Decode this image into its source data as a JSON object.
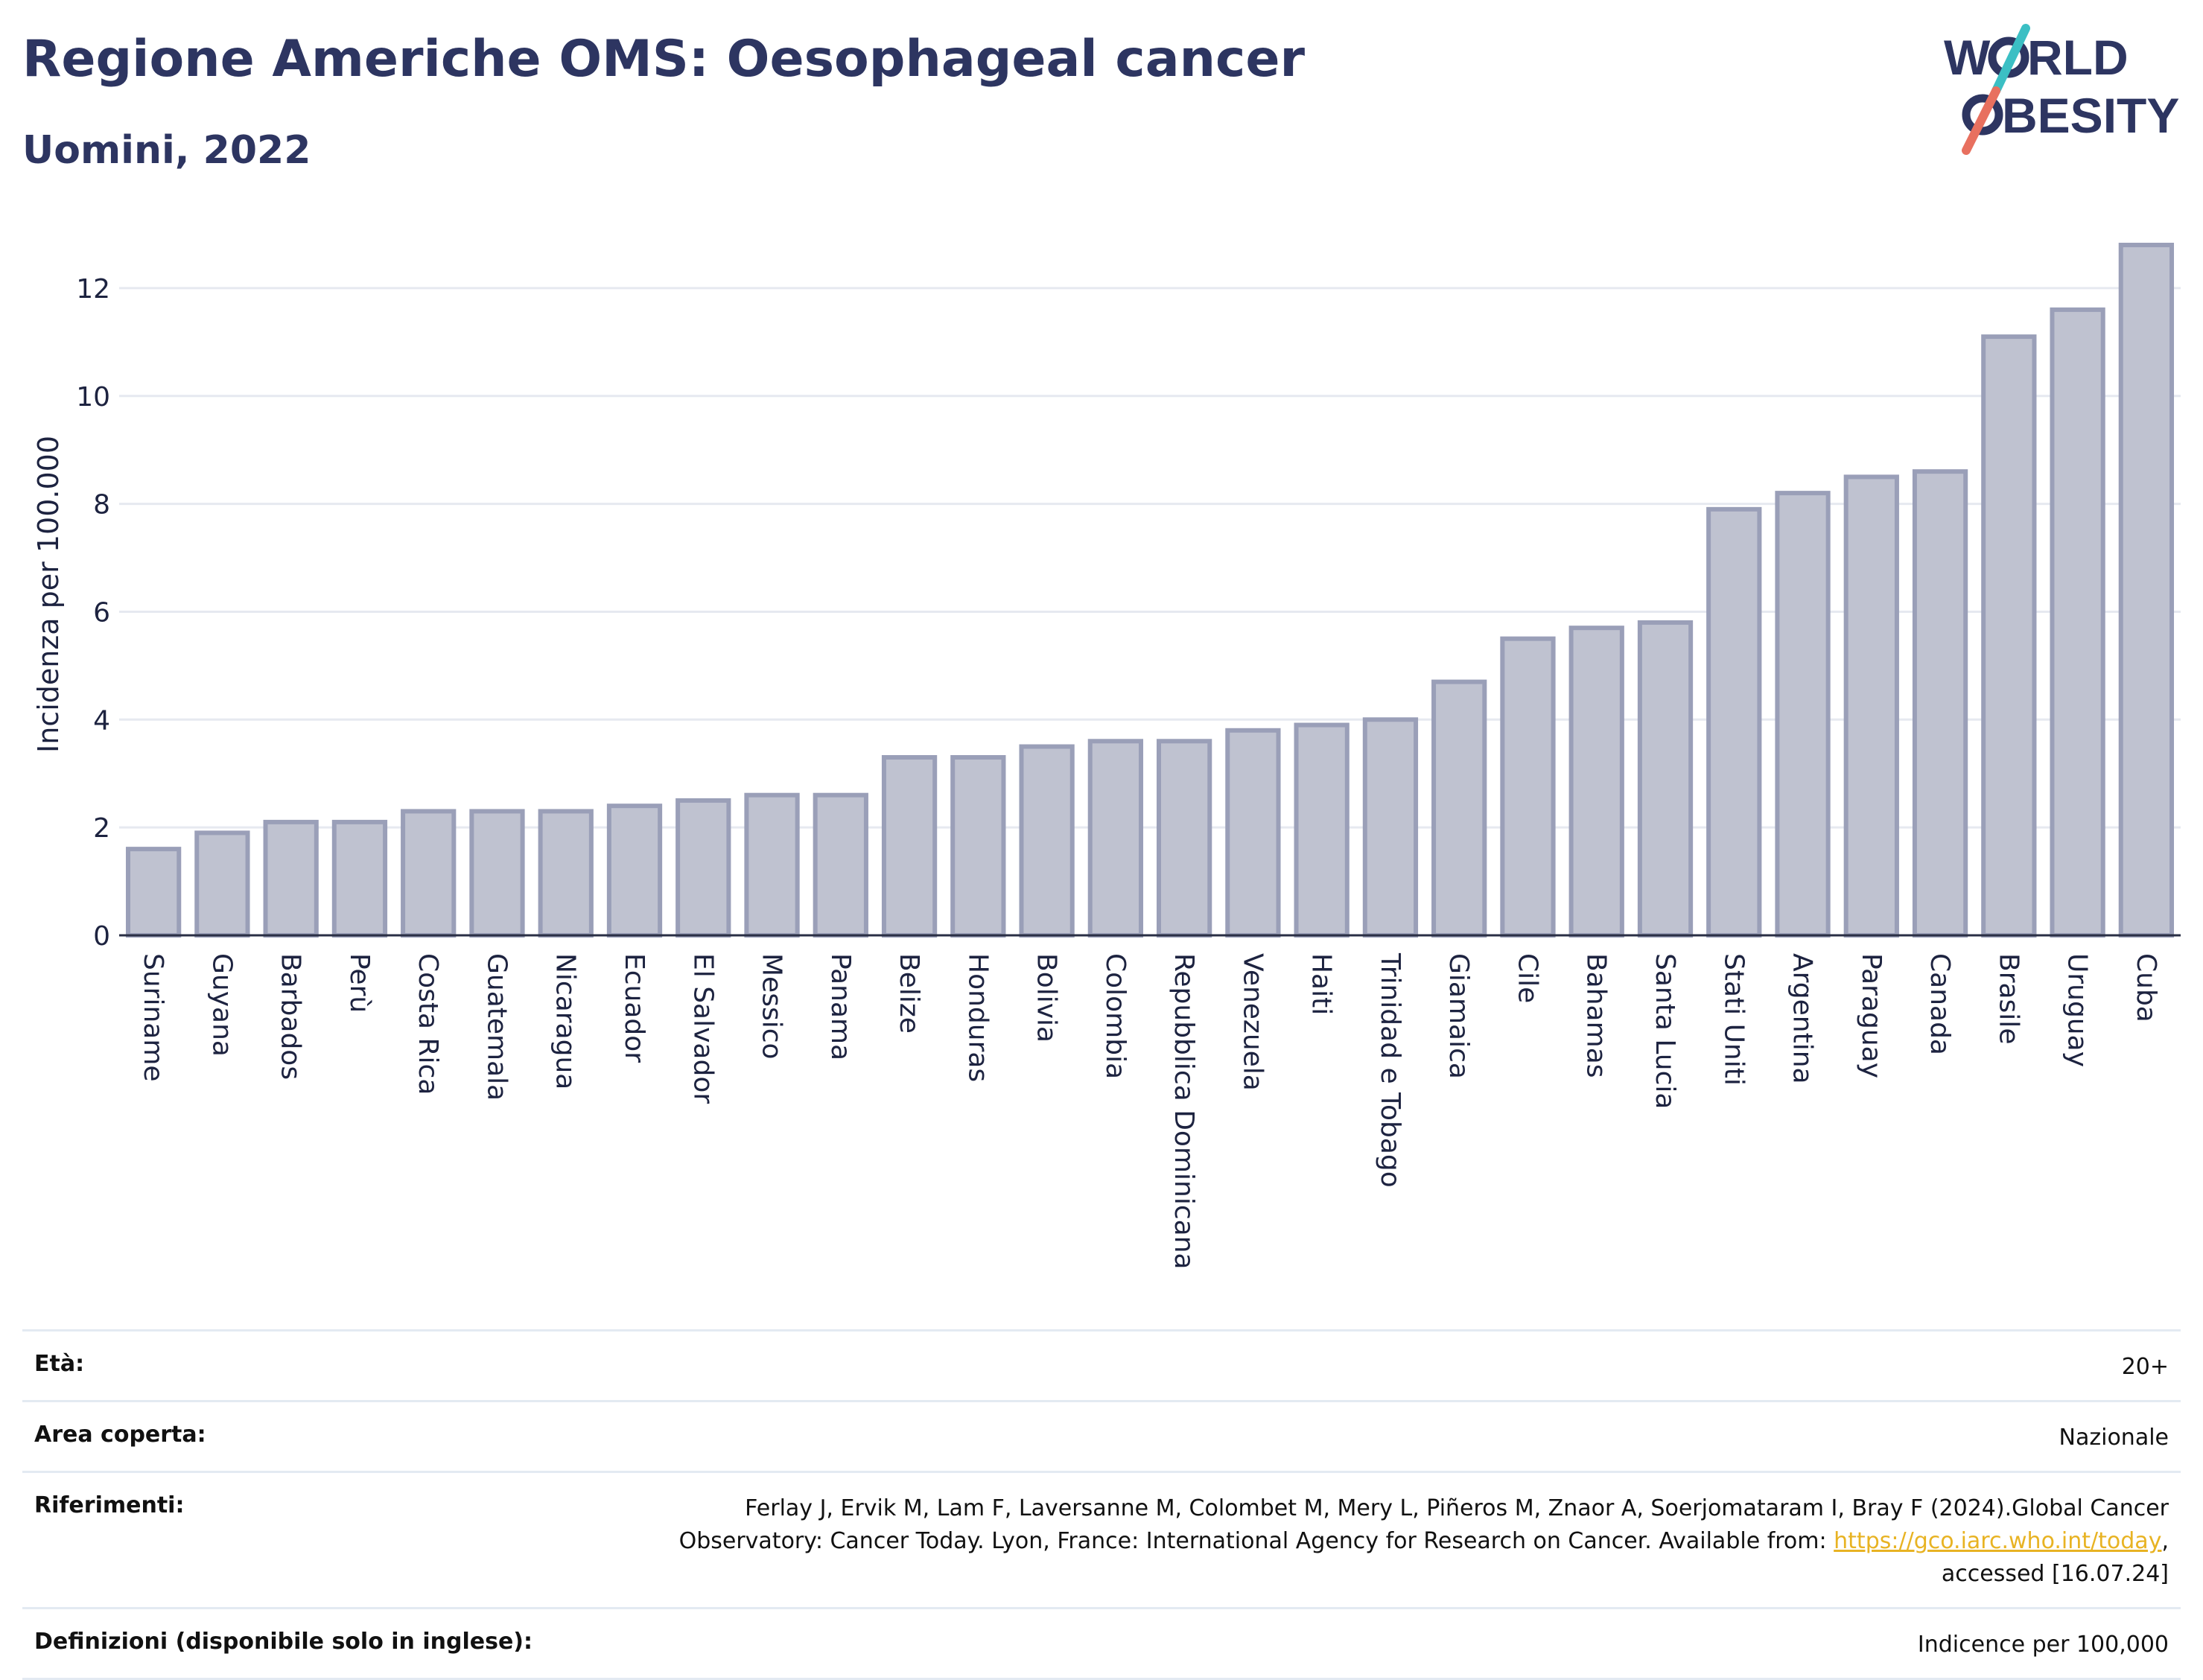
{
  "header": {
    "title": "Regione Americhe OMS: Oesophageal cancer",
    "subtitle": "Uomini, 2022",
    "logo_text": [
      "W",
      "RLD",
      "BESITY"
    ]
  },
  "colors": {
    "title": "#2d3561",
    "bar_fill": "#bfc2d0",
    "bar_stroke": "#9a9fb8",
    "grid": "#e6e9f0",
    "logo_navy": "#2d3561",
    "logo_teal": "#3bbfc4",
    "logo_coral": "#e8705f",
    "link": "#e8b323"
  },
  "chart_data": {
    "type": "bar",
    "categories": [
      "Suriname",
      "Guyana",
      "Barbados",
      "Perù",
      "Costa Rica",
      "Guatemala",
      "Nicaragua",
      "Ecuador",
      "El Salvador",
      "Messico",
      "Panama",
      "Belize",
      "Honduras",
      "Bolivia",
      "Colombia",
      "Repubblica Dominicana",
      "Venezuela",
      "Haiti",
      "Trinidad e Tobago",
      "Giamaica",
      "Cile",
      "Bahamas",
      "Santa Lucia",
      "Stati Uniti",
      "Argentina",
      "Paraguay",
      "Canada",
      "Brasile",
      "Uruguay",
      "Cuba"
    ],
    "values": [
      1.6,
      1.9,
      2.1,
      2.1,
      2.3,
      2.3,
      2.3,
      2.4,
      2.5,
      2.6,
      2.6,
      3.3,
      3.3,
      3.5,
      3.6,
      3.6,
      3.8,
      3.9,
      4.0,
      4.7,
      5.5,
      5.7,
      5.8,
      7.9,
      8.2,
      8.5,
      8.6,
      11.1,
      11.6,
      12.8
    ],
    "ylabel": "Incidenza per 100.000",
    "yticks": [
      0,
      2,
      4,
      6,
      8,
      10,
      12
    ],
    "ylim": [
      0,
      13.2
    ],
    "grid": true,
    "legend": "none"
  },
  "meta": {
    "rows": [
      {
        "label": "Età:",
        "value": "20+"
      },
      {
        "label": "Area coperta:",
        "value": "Nazionale"
      },
      {
        "label": "Riferimenti:",
        "value_pre": "Ferlay J, Ervik M, Lam F, Laversanne M, Colombet M, Mery L, Piñeros M, Znaor A, Soerjomataram I, Bray F (2024).Global Cancer Observatory: Cancer Today. Lyon, France: International Agency for Research on Cancer. Available from: ",
        "link": "https://gco.iarc.who.int/today",
        "value_post": ", accessed [16.07.24]"
      },
      {
        "label": "Definizioni (disponibile solo in inglese):",
        "value": "Indicence per 100,000"
      }
    ]
  }
}
